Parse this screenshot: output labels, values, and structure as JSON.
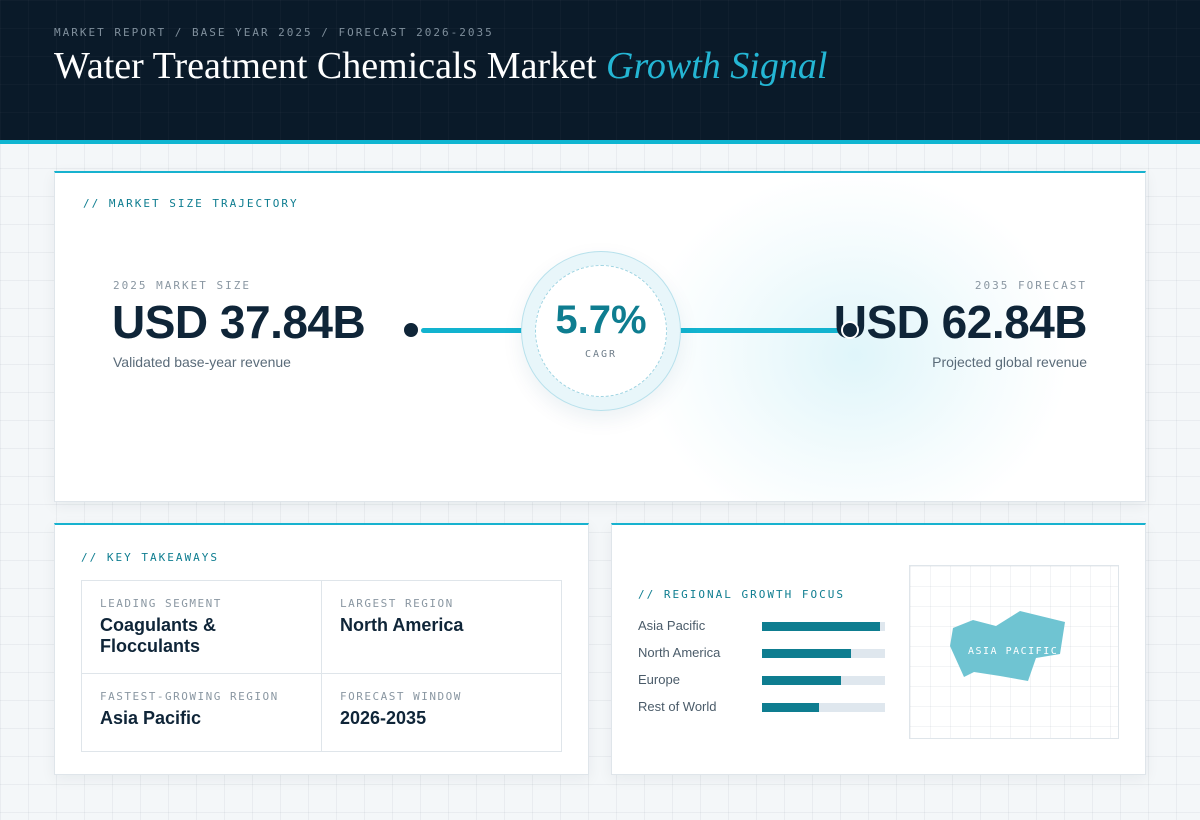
{
  "header": {
    "breadcrumb": "MARKET REPORT / BASE YEAR 2025 / FORECAST 2026-2035",
    "title_main": "Water Treatment Chemicals Market",
    "title_accent": "Growth Signal"
  },
  "trajectory": {
    "section_label": "// MARKET SIZE TRAJECTORY",
    "start": {
      "caption": "2025 MARKET SIZE",
      "value": "USD 37.84B",
      "subtitle": "Validated base-year revenue"
    },
    "cagr": {
      "value": "5.7%",
      "label": "CAGR"
    },
    "end": {
      "caption": "2035 FORECAST",
      "value": "USD 62.84B",
      "subtitle": "Projected global revenue"
    }
  },
  "takeaways": {
    "section_label": "// KEY TAKEAWAYS",
    "items": [
      {
        "label": "LEADING SEGMENT",
        "value": "Coagulants & Flocculants"
      },
      {
        "label": "LARGEST REGION",
        "value": "North America"
      },
      {
        "label": "FASTEST-GROWING REGION",
        "value": "Asia Pacific"
      },
      {
        "label": "FORECAST WINDOW",
        "value": "2026-2035"
      }
    ]
  },
  "regional": {
    "section_label": "// REGIONAL GROWTH FOCUS",
    "regions": [
      {
        "name": "Asia Pacific",
        "level": 0.96
      },
      {
        "name": "North America",
        "level": 0.72
      },
      {
        "name": "Europe",
        "level": 0.64
      },
      {
        "name": "Rest of World",
        "level": 0.46
      }
    ],
    "map_label": "ASIA PACIFIC"
  },
  "colors": {
    "header_bg": "#0a1a29",
    "accent": "#17b2cf",
    "bar_fill": "#0e7d90",
    "map_region": "#6fc4d2",
    "text_dark": "#0f2538"
  }
}
